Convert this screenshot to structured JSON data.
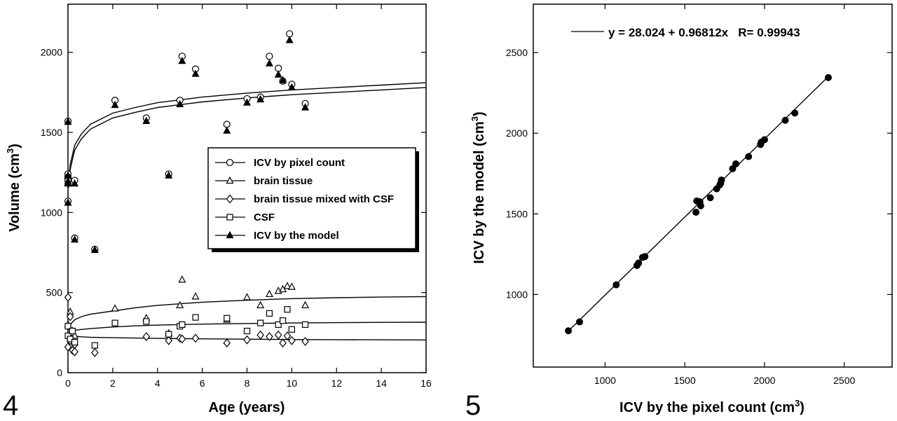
{
  "chart_data": [
    {
      "type": "scatter",
      "panel_label": "4",
      "xlabel": "Age (years)",
      "ylabel_text": "Volume (cm",
      "ylabel_sup": "3",
      "ylabel_close": ")",
      "xlim": [
        0,
        16
      ],
      "ylim": [
        0,
        2300
      ],
      "xticks": [
        0,
        2,
        4,
        6,
        8,
        10,
        12,
        14,
        16
      ],
      "yticks": [
        0,
        500,
        1000,
        1500,
        2000
      ],
      "grid": false,
      "legend_position": "center-right",
      "series": [
        {
          "name": "ICV by pixel count",
          "marker": "circle-open",
          "points": [
            [
              0,
              1570
            ],
            [
              0,
              1240
            ],
            [
              0,
              1220
            ],
            [
              0,
              1210
            ],
            [
              0,
              1200
            ],
            [
              0,
              1070
            ],
            [
              0.3,
              1200
            ],
            [
              0.3,
              840
            ],
            [
              1.2,
              770
            ],
            [
              2.1,
              1700
            ],
            [
              3.5,
              1590
            ],
            [
              4.5,
              1240
            ],
            [
              5.0,
              1700
            ],
            [
              5.1,
              1975
            ],
            [
              5.7,
              1895
            ],
            [
              7.1,
              1550
            ],
            [
              8.0,
              1710
            ],
            [
              8.6,
              1720
            ],
            [
              9.0,
              1975
            ],
            [
              9.4,
              1900
            ],
            [
              9.6,
              1820
            ],
            [
              9.9,
              2115
            ],
            [
              10.0,
              1800
            ],
            [
              10.6,
              1680
            ]
          ]
        },
        {
          "name": "brain tissue",
          "marker": "triangle-open",
          "points": [
            [
              0,
              300
            ],
            [
              0.1,
              380
            ],
            [
              0.2,
              260
            ],
            [
              0.3,
              230
            ],
            [
              2.1,
              400
            ],
            [
              3.5,
              340
            ],
            [
              4.5,
              245
            ],
            [
              5.0,
              420
            ],
            [
              5.1,
              580
            ],
            [
              5.7,
              475
            ],
            [
              7.1,
              330
            ],
            [
              8.0,
              470
            ],
            [
              8.6,
              420
            ],
            [
              9.0,
              490
            ],
            [
              9.4,
              510
            ],
            [
              9.6,
              520
            ],
            [
              9.8,
              540
            ],
            [
              10.0,
              535
            ],
            [
              10.6,
              420
            ]
          ]
        },
        {
          "name": "brain tissue mixed with CSF",
          "marker": "diamond-open",
          "points": [
            [
              0,
              470
            ],
            [
              0.1,
              350
            ],
            [
              0.1,
              200
            ],
            [
              0,
              160
            ],
            [
              0.2,
              140
            ],
            [
              0.3,
              175
            ],
            [
              0.3,
              130
            ],
            [
              1.2,
              125
            ],
            [
              3.5,
              225
            ],
            [
              4.5,
              200
            ],
            [
              5.0,
              215
            ],
            [
              5.1,
              210
            ],
            [
              5.7,
              215
            ],
            [
              7.1,
              185
            ],
            [
              8.0,
              205
            ],
            [
              8.6,
              235
            ],
            [
              9.0,
              225
            ],
            [
              9.4,
              235
            ],
            [
              9.6,
              185
            ],
            [
              9.8,
              230
            ],
            [
              10.0,
              200
            ],
            [
              10.6,
              195
            ]
          ]
        },
        {
          "name": "CSF",
          "marker": "square-open",
          "points": [
            [
              0,
              290
            ],
            [
              0,
              230
            ],
            [
              0.1,
              210
            ],
            [
              0.2,
              260
            ],
            [
              0.3,
              190
            ],
            [
              1.2,
              170
            ],
            [
              2.1,
              310
            ],
            [
              3.5,
              320
            ],
            [
              4.5,
              240
            ],
            [
              5.0,
              290
            ],
            [
              5.1,
              300
            ],
            [
              5.7,
              345
            ],
            [
              7.1,
              340
            ],
            [
              8.0,
              260
            ],
            [
              8.6,
              310
            ],
            [
              9.0,
              370
            ],
            [
              9.4,
              300
            ],
            [
              9.6,
              325
            ],
            [
              9.8,
              395
            ],
            [
              10.0,
              270
            ],
            [
              10.6,
              300
            ]
          ]
        },
        {
          "name": "ICV by the model",
          "marker": "triangle-filled",
          "points": [
            [
              0,
              1565
            ],
            [
              0,
              1230
            ],
            [
              0,
              1195
            ],
            [
              0,
              1185
            ],
            [
              0,
              1180
            ],
            [
              0,
              1060
            ],
            [
              0.3,
              1180
            ],
            [
              0.3,
              830
            ],
            [
              1.2,
              765
            ],
            [
              2.1,
              1670
            ],
            [
              3.5,
              1570
            ],
            [
              4.5,
              1230
            ],
            [
              5.0,
              1675
            ],
            [
              5.1,
              1945
            ],
            [
              5.7,
              1865
            ],
            [
              7.1,
              1510
            ],
            [
              8.0,
              1685
            ],
            [
              8.6,
              1705
            ],
            [
              9.0,
              1930
            ],
            [
              9.4,
              1860
            ],
            [
              9.6,
              1825
            ],
            [
              9.9,
              2075
            ],
            [
              10.0,
              1780
            ],
            [
              10.6,
              1655
            ]
          ]
        }
      ],
      "fit_curves": [
        {
          "x": [
            0.02,
            0.1,
            0.3,
            0.6,
            1,
            2,
            3,
            4,
            6,
            8,
            10,
            12,
            14,
            16
          ],
          "y": [
            1150,
            1270,
            1390,
            1460,
            1520,
            1590,
            1625,
            1655,
            1690,
            1715,
            1735,
            1750,
            1765,
            1780
          ]
        },
        {
          "x": [
            0.02,
            0.1,
            0.3,
            0.6,
            1,
            2,
            3,
            4,
            6,
            8,
            10,
            12,
            14,
            16
          ],
          "y": [
            1180,
            1300,
            1420,
            1490,
            1550,
            1620,
            1655,
            1685,
            1720,
            1745,
            1765,
            1780,
            1795,
            1810
          ]
        },
        {
          "x": [
            0,
            0.1,
            0.3,
            0.6,
            1,
            2,
            3,
            4,
            6,
            8,
            10,
            12,
            14,
            16
          ],
          "y": [
            260,
            300,
            330,
            350,
            365,
            385,
            405,
            420,
            440,
            452,
            462,
            468,
            472,
            475
          ]
        },
        {
          "x": [
            0,
            0.1,
            0.3,
            0.6,
            1,
            2,
            3,
            4,
            6,
            8,
            10,
            12,
            14,
            16
          ],
          "y": [
            240,
            255,
            265,
            270,
            275,
            285,
            292,
            297,
            303,
            307,
            310,
            312,
            314,
            315
          ]
        },
        {
          "x": [
            0,
            0.1,
            0.3,
            0.6,
            1,
            2,
            3,
            4,
            6,
            8,
            10,
            12,
            14,
            16
          ],
          "y": [
            240,
            235,
            228,
            224,
            221,
            218,
            216,
            214,
            211,
            209,
            207,
            206,
            205,
            204
          ]
        }
      ]
    },
    {
      "type": "scatter",
      "panel_label": "5",
      "xlabel_text": "ICV by the pixel count (cm",
      "xlabel_sup": "3",
      "xlabel_close": ")",
      "ylabel_text": "ICV by the model (cm",
      "ylabel_sup": "3",
      "ylabel_close": ")",
      "xlim": [
        550,
        2800
      ],
      "ylim": [
        550,
        2800
      ],
      "xticks": [
        1000,
        1500,
        2000,
        2500
      ],
      "yticks": [
        1000,
        1500,
        2000,
        2500
      ],
      "grid": false,
      "legend_position": "top-left",
      "fit_label": "y = 28.024 + 0.96812x   R= 0.99943",
      "fit": {
        "intercept": 28.024,
        "slope": 0.96812,
        "x_range": [
          770,
          2400
        ]
      },
      "points": [
        [
          770,
          775
        ],
        [
          840,
          830
        ],
        [
          1070,
          1060
        ],
        [
          1200,
          1180
        ],
        [
          1210,
          1195
        ],
        [
          1235,
          1230
        ],
        [
          1250,
          1235
        ],
        [
          1570,
          1510
        ],
        [
          1575,
          1580
        ],
        [
          1595,
          1575
        ],
        [
          1600,
          1550
        ],
        [
          1660,
          1600
        ],
        [
          1700,
          1655
        ],
        [
          1720,
          1680
        ],
        [
          1725,
          1690
        ],
        [
          1730,
          1710
        ],
        [
          1800,
          1780
        ],
        [
          1820,
          1810
        ],
        [
          1900,
          1855
        ],
        [
          1975,
          1930
        ],
        [
          1980,
          1945
        ],
        [
          2000,
          1960
        ],
        [
          2130,
          2080
        ],
        [
          2190,
          2125
        ],
        [
          2400,
          2345
        ]
      ]
    }
  ]
}
